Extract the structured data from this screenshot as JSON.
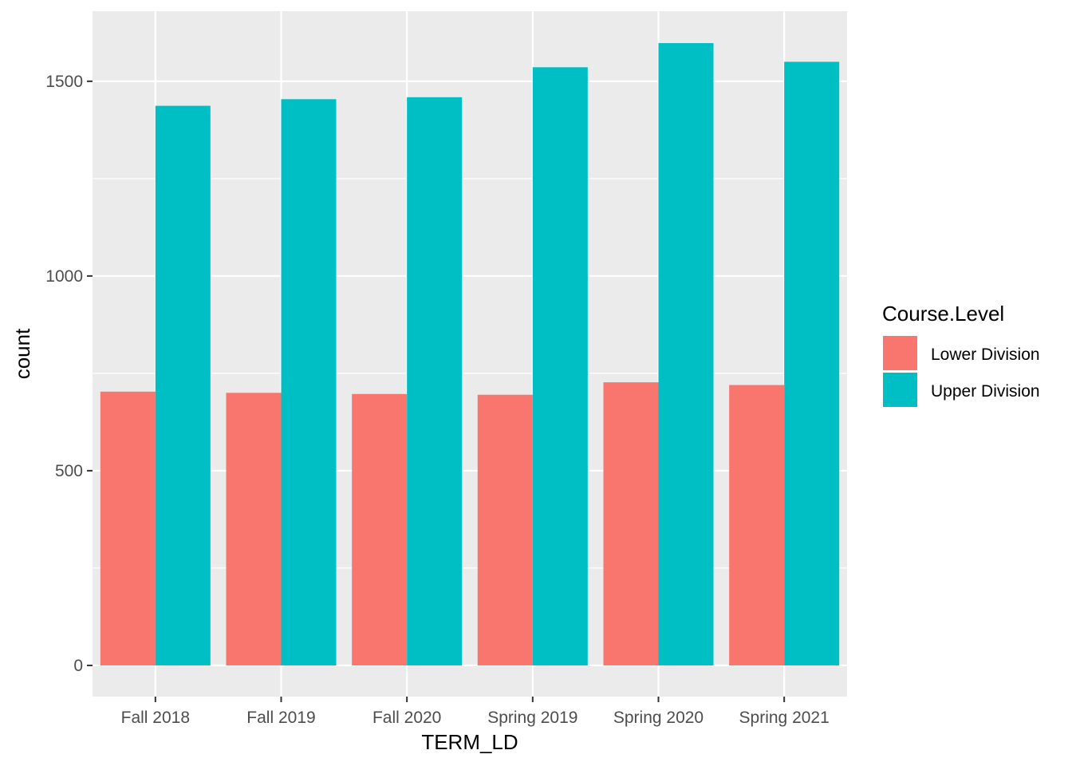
{
  "chart_data": {
    "type": "bar",
    "xlabel": "TERM_LD",
    "ylabel": "count",
    "categories": [
      "Fall 2018",
      "Fall 2019",
      "Fall 2020",
      "Spring 2019",
      "Spring 2020",
      "Spring 2021"
    ],
    "series": [
      {
        "name": "Lower Division",
        "color": "#F8766D",
        "values": [
          703,
          700,
          697,
          695,
          727,
          720
        ]
      },
      {
        "name": "Upper Division",
        "color": "#00BFC4",
        "values": [
          1437,
          1454,
          1459,
          1536,
          1598,
          1550
        ]
      }
    ],
    "ylim": [
      -80,
      1680
    ],
    "y_ticks": [
      0,
      500,
      1000,
      1500
    ],
    "y_tick_labels": [
      "0",
      "500",
      "1000",
      "1500"
    ],
    "grid": true,
    "legend": {
      "title": "Course.Level",
      "position": "right"
    },
    "colors": {
      "panel": "#EBEBEB",
      "grid": "#FFFFFF",
      "tick": "#333333"
    }
  }
}
